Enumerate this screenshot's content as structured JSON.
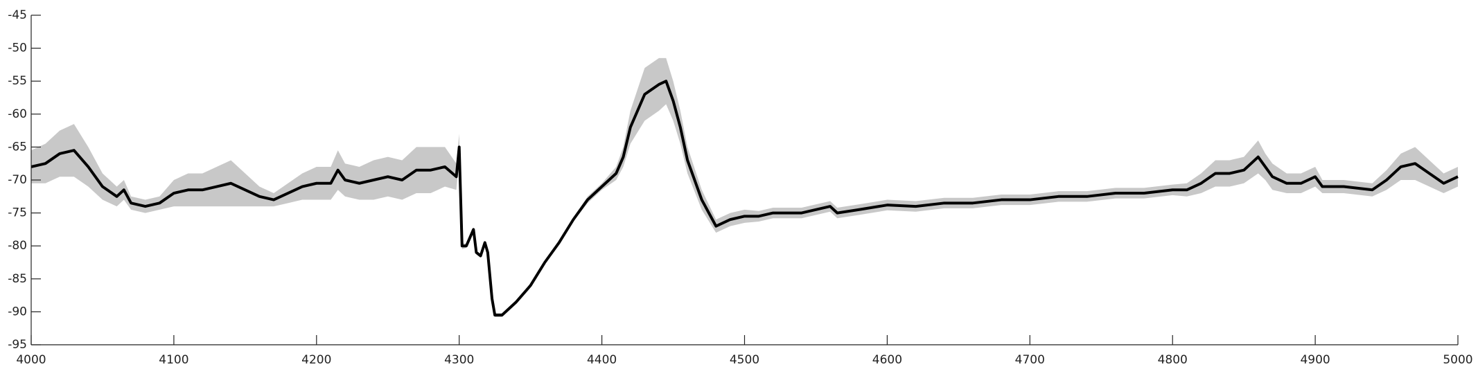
{
  "chart_data": {
    "type": "line",
    "x": [
      4000,
      4010,
      4020,
      4030,
      4040,
      4050,
      4060,
      4065,
      4070,
      4080,
      4090,
      4100,
      4110,
      4120,
      4130,
      4140,
      4150,
      4160,
      4170,
      4180,
      4190,
      4200,
      4210,
      4215,
      4220,
      4230,
      4240,
      4250,
      4260,
      4270,
      4280,
      4290,
      4298,
      4300,
      4302,
      4305,
      4310,
      4312,
      4315,
      4318,
      4320,
      4323,
      4325,
      4330,
      4340,
      4350,
      4360,
      4370,
      4380,
      4390,
      4400,
      4410,
      4415,
      4420,
      4430,
      4440,
      4445,
      4450,
      4455,
      4460,
      4470,
      4480,
      4490,
      4500,
      4510,
      4520,
      4530,
      4540,
      4550,
      4560,
      4565,
      4580,
      4600,
      4620,
      4640,
      4660,
      4680,
      4700,
      4720,
      4740,
      4760,
      4780,
      4800,
      4810,
      4820,
      4830,
      4840,
      4850,
      4860,
      4865,
      4870,
      4880,
      4890,
      4900,
      4905,
      4920,
      4940,
      4950,
      4960,
      4970,
      4980,
      4990,
      5000
    ],
    "series": [
      {
        "color": "#000000",
        "values": [
          -68,
          -67.5,
          -66,
          -65.5,
          -68,
          -71,
          -72.5,
          -71.5,
          -73.5,
          -74,
          -73.5,
          -72,
          -71.5,
          -71.5,
          -71,
          -70.5,
          -71.5,
          -72.5,
          -73,
          -72,
          -71,
          -70.5,
          -70.5,
          -68.5,
          -70,
          -70.5,
          -70,
          -69.5,
          -70,
          -68.5,
          -68.5,
          -68,
          -69.5,
          -65,
          -80,
          -80,
          -77.5,
          -81,
          -81.5,
          -79.5,
          -81,
          -88,
          -90.5,
          -90.5,
          -88.5,
          -86,
          -82.5,
          -79.5,
          -76,
          -73,
          -71,
          -69,
          -66.5,
          -62,
          -57,
          -55.5,
          -55,
          -58,
          -62,
          -67,
          -73,
          -77,
          -76,
          -75.5,
          -75.5,
          -75,
          -75,
          -75,
          -74.5,
          -74,
          -75,
          -74.5,
          -73.8,
          -74,
          -73.5,
          -73.5,
          -73,
          -73,
          -72.5,
          -72.5,
          -72,
          -72,
          -71.5,
          -71.5,
          -70.5,
          -69,
          -69,
          -68.5,
          -66.5,
          -68,
          -69.5,
          -70.5,
          -70.5,
          -69.5,
          -71,
          -71,
          -71.5,
          -70,
          -68,
          -67.5,
          -69,
          -70.5,
          -69.5
        ]
      }
    ],
    "band": {
      "color": "#c8c8c8",
      "upper": [
        -65.5,
        -64.5,
        -62.5,
        -61.5,
        -65,
        -69,
        -71,
        -70,
        -72.5,
        -73,
        -72.5,
        -70,
        -69,
        -69,
        -68,
        -67,
        -69,
        -71,
        -72,
        -70.5,
        -69,
        -68,
        -68,
        -65.5,
        -67.5,
        -68,
        -67,
        -66.5,
        -67,
        -65,
        -65,
        -65,
        -67.5,
        -63,
        -79.5,
        -79.7,
        -77.2,
        -80.7,
        -81.2,
        -79.2,
        -80.7,
        -87.7,
        -90.2,
        -90.2,
        -88.2,
        -85.7,
        -82.2,
        -79.2,
        -75.7,
        -72.5,
        -70.5,
        -68,
        -65,
        -59.5,
        -53,
        -51.5,
        -51.5,
        -55,
        -59.5,
        -65,
        -71.5,
        -76,
        -75,
        -74.5,
        -74.7,
        -74.2,
        -74.2,
        -74.2,
        -73.7,
        -73.2,
        -74.2,
        -73.7,
        -73,
        -73.2,
        -72.7,
        -72.7,
        -72.2,
        -72.2,
        -71.7,
        -71.7,
        -71.2,
        -71.2,
        -70.7,
        -70.5,
        -69,
        -67,
        -67,
        -66.5,
        -64,
        -66,
        -67.5,
        -69,
        -69,
        -68,
        -70,
        -70,
        -70.5,
        -68.5,
        -66,
        -65,
        -67,
        -69,
        -68
      ],
      "lower": [
        -70.5,
        -70.5,
        -69.5,
        -69.5,
        -71,
        -73,
        -74,
        -73,
        -74.5,
        -75,
        -74.5,
        -74,
        -74,
        -74,
        -74,
        -74,
        -74,
        -74,
        -74,
        -73.5,
        -73,
        -73,
        -73,
        -71.5,
        -72.5,
        -73,
        -73,
        -72.5,
        -73,
        -72,
        -72,
        -71,
        -71.5,
        -67,
        -80.5,
        -80.3,
        -77.8,
        -81.3,
        -81.8,
        -79.8,
        -81.3,
        -88.3,
        -90.8,
        -90.8,
        -88.8,
        -86.3,
        -82.8,
        -79.8,
        -76.3,
        -73.5,
        -71.5,
        -70,
        -68,
        -64.5,
        -61,
        -59.5,
        -58.5,
        -61,
        -64.5,
        -69,
        -74.5,
        -78,
        -77,
        -76.5,
        -76.3,
        -75.8,
        -75.8,
        -75.8,
        -75.3,
        -74.8,
        -75.8,
        -75.3,
        -74.6,
        -74.8,
        -74.3,
        -74.3,
        -73.8,
        -73.8,
        -73.3,
        -73.3,
        -72.8,
        -72.8,
        -72.3,
        -72.5,
        -72,
        -71,
        -71,
        -70.5,
        -69,
        -70,
        -71.5,
        -72,
        -72,
        -71,
        -72,
        -72,
        -72.5,
        -71.5,
        -70,
        -70,
        -71,
        -72,
        -71
      ]
    },
    "xlim": [
      4000,
      5000
    ],
    "xticks": [
      4000,
      4100,
      4200,
      4300,
      4400,
      4500,
      4600,
      4700,
      4800,
      4900,
      5000
    ],
    "ylim": [
      -95,
      -45
    ],
    "yticks": [
      -95,
      -90,
      -85,
      -80,
      -75,
      -70,
      -65,
      -60,
      -55,
      -50,
      -45
    ],
    "grid": false
  }
}
